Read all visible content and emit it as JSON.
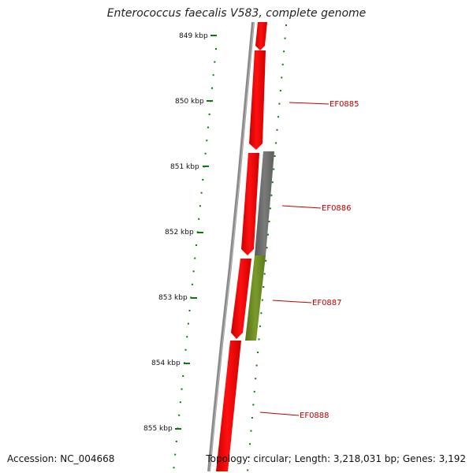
{
  "title": "Enterococcus faecalis V583, complete genome",
  "footer": {
    "accession": "Accession: NC_004668",
    "summary": "Topology: circular; Length: 3,218,031 bp; Genes: 3,192"
  },
  "ticks": [
    "849 kbp",
    "850 kbp",
    "851 kbp",
    "852 kbp",
    "853 kbp",
    "854 kbp",
    "855 kbp"
  ],
  "genes": [
    {
      "name": "EF0885"
    },
    {
      "name": "EF0886"
    },
    {
      "name": "EF0887"
    },
    {
      "name": "EF0888"
    }
  ],
  "colors": {
    "cds": "#ff0000",
    "gene": "#6e6e6e",
    "rrna": "#6b8e23",
    "backbone": "#8a8a8a",
    "tick": "#0b7a0b",
    "label": "#c00000"
  }
}
